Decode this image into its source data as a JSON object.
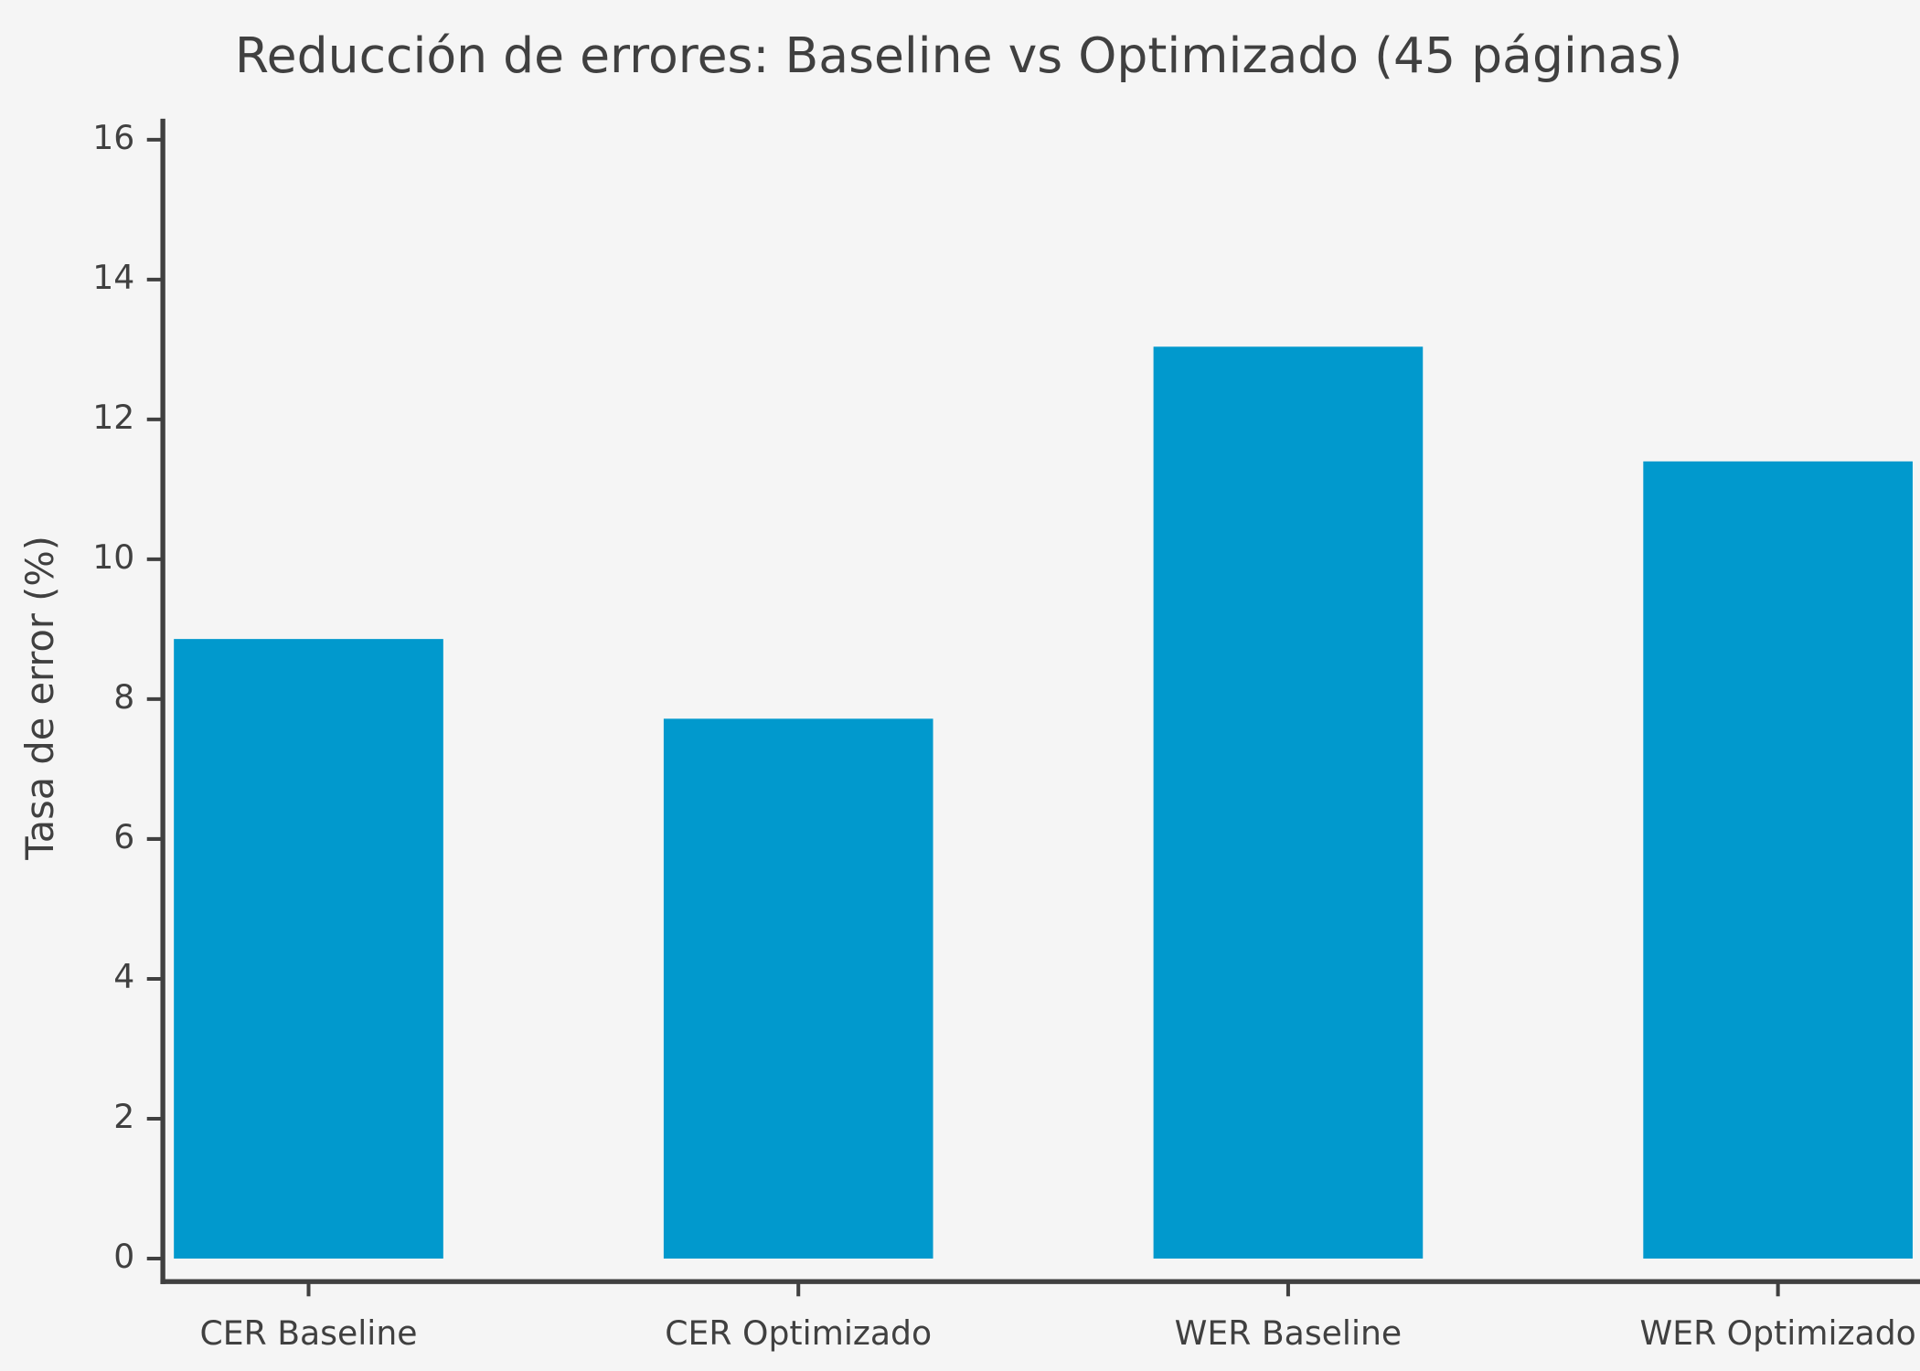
{
  "chart_data": {
    "type": "bar",
    "title": "Reducción de errores: Baseline vs Optimizado (45 páginas)",
    "y_label": "Tasa de error (%)",
    "categories": [
      "CER Baseline",
      "CER Optimizado",
      "WER Baseline",
      "WER Optimizado"
    ],
    "values": [
      8.86,
      7.72,
      13.04,
      11.4
    ],
    "color": "#0199cd",
    "ylim": [
      -0.33,
      16.3
    ],
    "yticks": [
      0,
      2,
      4,
      6,
      8,
      10,
      12,
      14,
      16
    ],
    "grid": false
  }
}
